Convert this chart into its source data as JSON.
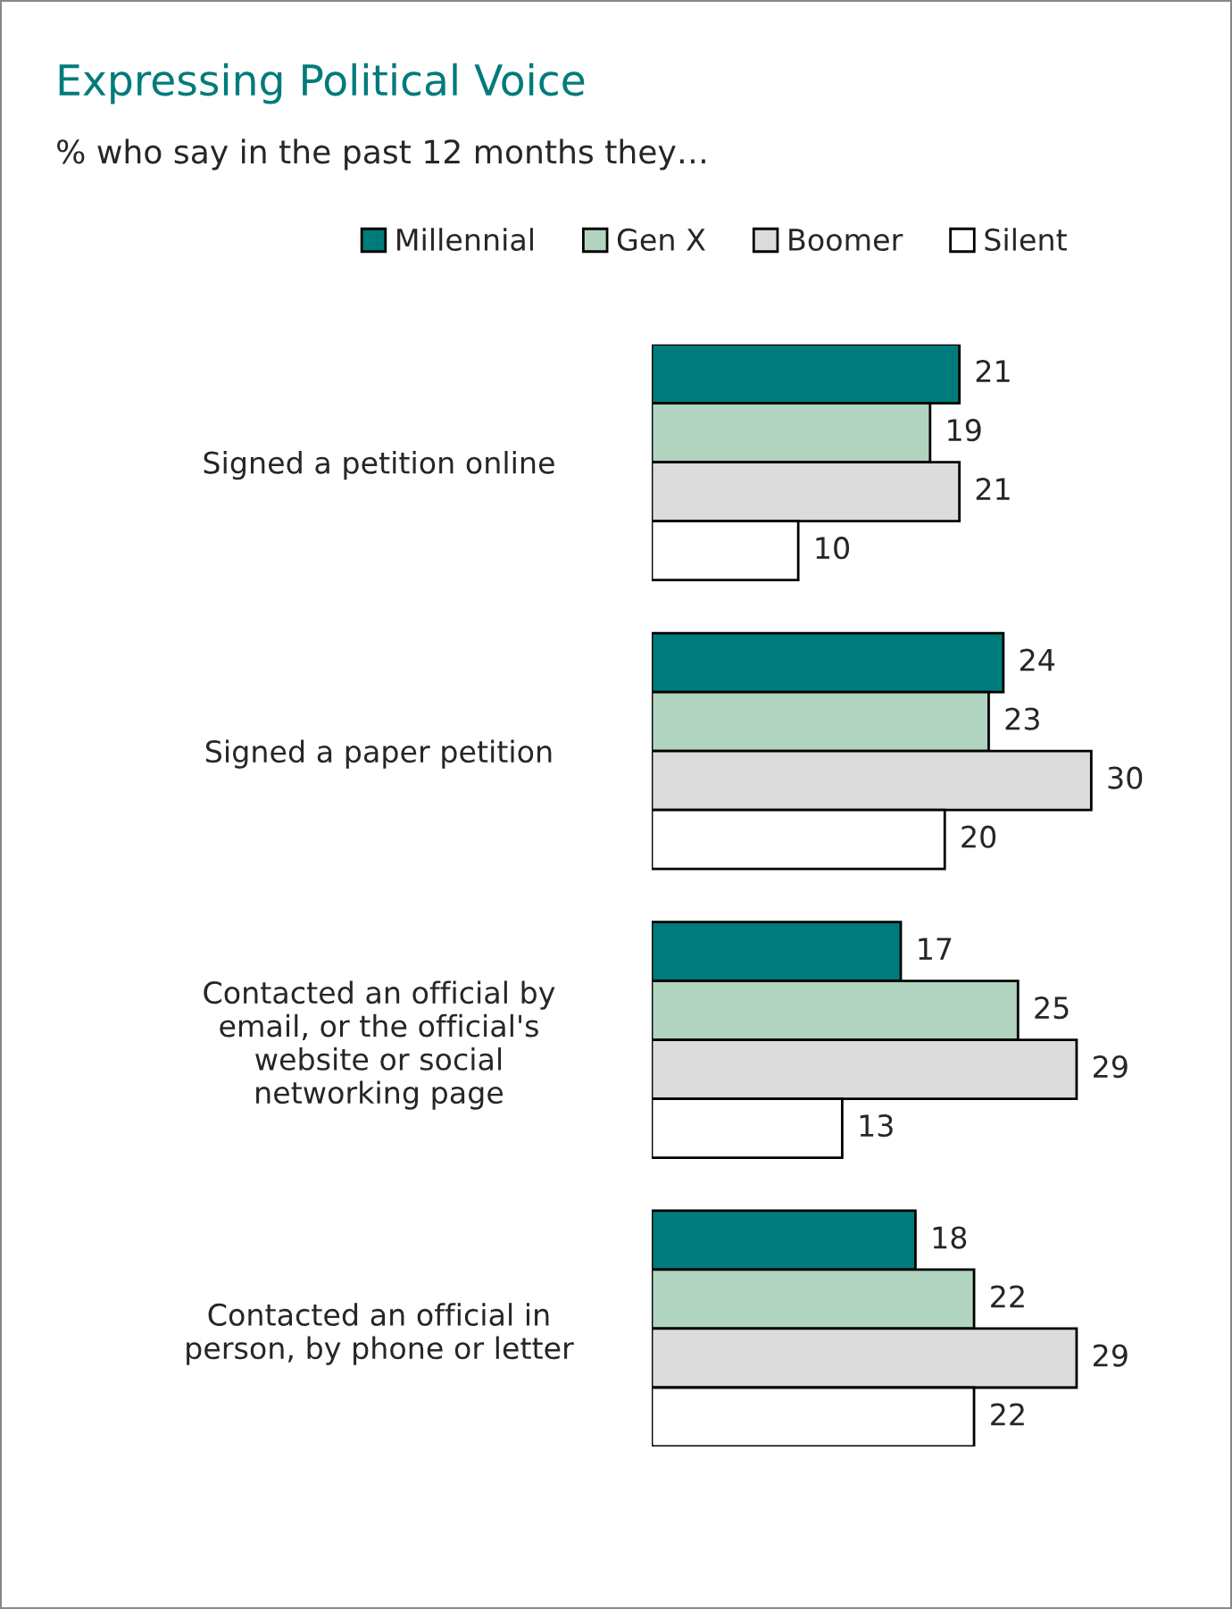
{
  "chart_data": {
    "type": "bar",
    "orientation": "horizontal",
    "title": "Expressing Political Voice",
    "subtitle": "% who say in the past 12 months they…",
    "categories": [
      "Signed a petition online",
      "Signed a paper petition",
      "Contacted an official by\nemail, or the official's\nwebsite or social\nnetworking page",
      "Contacted an official in\nperson, by phone or letter"
    ],
    "series": [
      {
        "name": "Millennial",
        "color": "#007b7b",
        "values": [
          21,
          24,
          17,
          18
        ]
      },
      {
        "name": "Gen X",
        "color": "#b0d4c0",
        "values": [
          19,
          23,
          25,
          22
        ]
      },
      {
        "name": "Boomer",
        "color": "#dcdcdc",
        "values": [
          21,
          30,
          29,
          29
        ]
      },
      {
        "name": "Silent",
        "color": "#ffffff",
        "values": [
          10,
          20,
          13,
          22
        ]
      }
    ],
    "data_labels": true,
    "legend": "top",
    "grid": false
  }
}
